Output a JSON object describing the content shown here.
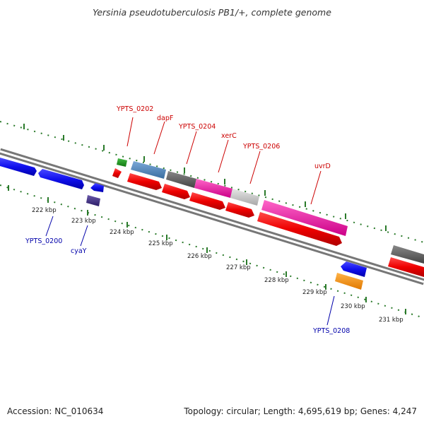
{
  "title": "Yersinia pseudotuberculosis PB1/+, complete genome",
  "footer": {
    "accession": "Accession: NC_010634",
    "summary": "Topology: circular; Length: 4,695,619 bp; Genes: 4,247"
  },
  "colors": {
    "backbone": "#888888",
    "tick": "#2a7a2a",
    "label_top": "#cc0000",
    "label_bottom": "#0000aa"
  },
  "ticks": [
    "222 kbp",
    "223 kbp",
    "224 kbp",
    "225 kbp",
    "226 kbp",
    "227 kbp",
    "228 kbp",
    "229 kbp",
    "230 kbp",
    "231 kbp"
  ],
  "gene_labels_top": [
    "YPTS_0202",
    "dapF",
    "YPTS_0204",
    "xerC",
    "YPTS_0206",
    "uvrD"
  ],
  "gene_labels_bottom": [
    "YPTS_0200",
    "cyaY",
    "YPTS_0208"
  ]
}
